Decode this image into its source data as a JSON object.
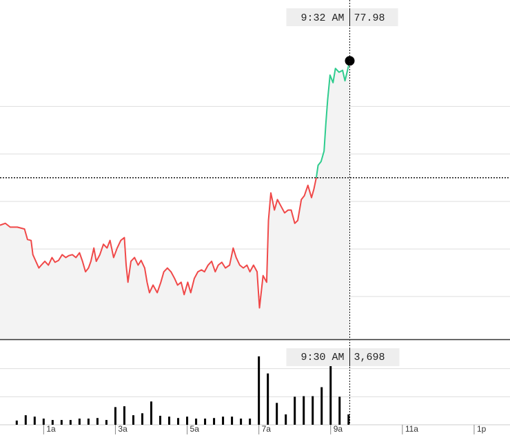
{
  "chart_data": [
    {
      "type": "line",
      "x": [
        -13,
        -4,
        4,
        16,
        28,
        33,
        39,
        42,
        47,
        52,
        56,
        62,
        68,
        74,
        79,
        85,
        91,
        97,
        102,
        108,
        114,
        120,
        125,
        130,
        135,
        139,
        144,
        148,
        154,
        160,
        166,
        171,
        177,
        183,
        189,
        195,
        198,
        201,
        206,
        212,
        218,
        223,
        229,
        233,
        237,
        243,
        250,
        256,
        261,
        267,
        273,
        279,
        284,
        290,
        295,
        301,
        306,
        312,
        318,
        324,
        329,
        335,
        341,
        347,
        352,
        358,
        364,
        371,
        377,
        382,
        388,
        394,
        400,
        405,
        411,
        417,
        421,
        427,
        433,
        436,
        440,
        446,
        451,
        457,
        463,
        469,
        474,
        480,
        485,
        491,
        496,
        502,
        508,
        512,
        516,
        519,
        524,
        529,
        532,
        535,
        539,
        544,
        548,
        554,
        560,
        564,
        572
      ],
      "values": [
        76.25,
        76.27,
        76.23,
        76.23,
        76.21,
        76.1,
        76.09,
        75.94,
        75.87,
        75.8,
        75.83,
        75.87,
        75.83,
        75.91,
        75.86,
        75.88,
        75.94,
        75.91,
        75.93,
        75.94,
        75.91,
        75.96,
        75.87,
        75.76,
        75.8,
        75.87,
        76.01,
        75.87,
        75.94,
        76.05,
        76.01,
        76.09,
        75.91,
        76.01,
        76.09,
        76.12,
        75.83,
        75.65,
        75.87,
        75.91,
        75.83,
        75.88,
        75.8,
        75.65,
        75.54,
        75.62,
        75.54,
        75.65,
        75.76,
        75.8,
        75.76,
        75.69,
        75.62,
        75.65,
        75.52,
        75.65,
        75.54,
        75.69,
        75.76,
        75.78,
        75.76,
        75.83,
        75.87,
        75.76,
        75.83,
        75.86,
        75.8,
        75.83,
        76.01,
        75.91,
        75.83,
        75.8,
        75.83,
        75.76,
        75.83,
        75.76,
        75.38,
        75.72,
        75.65,
        76.3,
        76.59,
        76.41,
        76.52,
        76.45,
        76.38,
        76.41,
        76.41,
        76.27,
        76.3,
        76.52,
        76.56,
        76.67,
        76.54,
        76.63,
        76.75,
        76.88,
        76.92,
        77.03,
        77.32,
        77.57,
        77.83,
        77.75,
        77.9,
        77.86,
        77.88,
        77.77,
        77.98
      ],
      "up_color": "#2ecc8e",
      "down_color": "#f04848",
      "area_color": "#f3f3f3",
      "reference_value": 76.75,
      "xlim": [
        -13,
        840
      ],
      "ylim": [
        75.05,
        78.62
      ],
      "yticks": [
        75.5,
        76,
        76.5,
        77,
        77.5
      ],
      "grid": true,
      "crosshair_label": "9:32 AM"
    },
    {
      "type": "bar",
      "x": [
        15,
        30,
        45,
        60,
        75,
        90,
        105,
        120,
        135,
        150,
        165,
        180,
        195,
        210,
        225,
        240,
        255,
        270,
        285,
        300,
        315,
        330,
        345,
        360,
        375,
        390,
        405,
        420,
        435,
        450,
        465,
        480,
        495,
        510,
        525,
        540,
        555,
        570
      ],
      "values": [
        1500,
        3400,
        2900,
        2200,
        1700,
        1700,
        1700,
        2200,
        2200,
        2400,
        1700,
        6300,
        6600,
        3400,
        4100,
        8300,
        3200,
        2900,
        2400,
        2900,
        2200,
        2200,
        2400,
        2900,
        2900,
        2200,
        2200,
        24400,
        18300,
        7800,
        3700,
        10000,
        10200,
        10200,
        13400,
        21000,
        10000,
        3698
      ],
      "value_labels": [
        null,
        null,
        null,
        null,
        null,
        null,
        null,
        null,
        null,
        null,
        null,
        null,
        null,
        null,
        null,
        null,
        null,
        null,
        null,
        null,
        null,
        null,
        null,
        null,
        null,
        null,
        null,
        null,
        null,
        null,
        null,
        null,
        null,
        null,
        null,
        null,
        null,
        "3,698"
      ],
      "color": "#000000",
      "xlim": [
        -13,
        840
      ],
      "ylim": [
        0,
        30000
      ],
      "yticks": [
        10000,
        20000
      ],
      "grid": true,
      "xticks": [
        {
          "value": 60,
          "label": "1a"
        },
        {
          "value": 180,
          "label": "3a"
        },
        {
          "value": 300,
          "label": "5a"
        },
        {
          "value": 420,
          "label": "7a"
        },
        {
          "value": 540,
          "label": "9a"
        },
        {
          "value": 660,
          "label": "11a"
        },
        {
          "value": 780,
          "label": "1p"
        }
      ],
      "crosshair_label": "9:30 AM"
    }
  ]
}
